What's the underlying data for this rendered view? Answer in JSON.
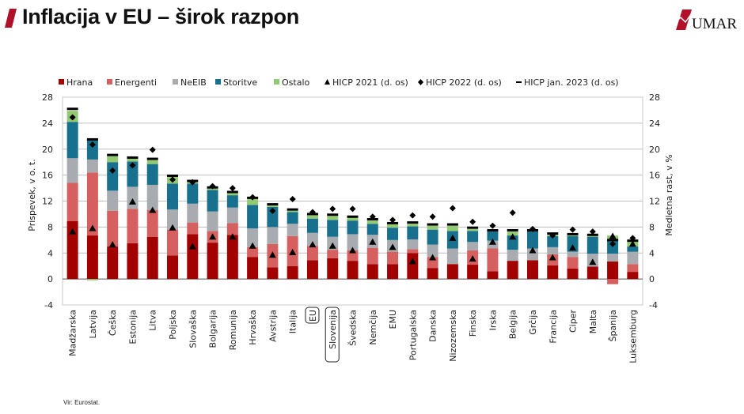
{
  "header": {
    "title": "Inflacija v EU – širok razpon",
    "logo_text": "UMAR"
  },
  "source": "Vir: Eurostat.",
  "colors": {
    "Hrana": "#a30000",
    "Energenti": "#d6605f",
    "NeEIB": "#a8acb0",
    "Storitve": "#17708d",
    "Ostalo": "#94c973",
    "accent": "#b0102a"
  },
  "chart_data": {
    "type": "bar",
    "stacked": true,
    "title": "",
    "ylabel": "Prispevek, v o. t.",
    "y2label": "Medletna rast, v %",
    "ylim": [
      -4,
      28
    ],
    "y2lim": [
      -4,
      28
    ],
    "yticks": [
      "-4",
      "0",
      "4",
      "8",
      "12",
      "16",
      "20",
      "24",
      "28"
    ],
    "grid": true,
    "legend_position": "top",
    "highlighted_categories": [
      "EU",
      "Slovenija"
    ],
    "categories": [
      "Madžarska",
      "Latvija",
      "Češka",
      "Estonija",
      "Litva",
      "Poljska",
      "Slovaška",
      "Bolgarija",
      "Romunija",
      "Hrvaška",
      "Avstrija",
      "Italija",
      "EU",
      "Slovenija",
      "Švedska",
      "Nemčija",
      "EMU",
      "Portugalska",
      "Danska",
      "Nizozemska",
      "Finska",
      "Irska",
      "Belgija",
      "Grčija",
      "Francija",
      "Ciper",
      "Malta",
      "Španija",
      "Luksemburg"
    ],
    "series": [
      {
        "name": "Hrana",
        "kind": "bar",
        "values": [
          8.9,
          6.7,
          5.0,
          5.5,
          6.5,
          3.6,
          6.9,
          5.6,
          6.8,
          3.4,
          1.8,
          2.0,
          2.9,
          3.2,
          2.8,
          2.3,
          2.3,
          4.0,
          1.7,
          2.3,
          2.2,
          1.2,
          2.8,
          2.9,
          2.1,
          1.6,
          1.9,
          2.7,
          1.1
        ]
      },
      {
        "name": "Energenti",
        "kind": "bar",
        "values": [
          5.9,
          9.7,
          5.5,
          5.3,
          4.1,
          4.0,
          1.8,
          1.8,
          1.8,
          1.5,
          3.6,
          4.6,
          2.2,
          1.3,
          1.6,
          2.5,
          1.9,
          0.6,
          1.7,
          0.0,
          2.2,
          3.5,
          0.0,
          0.0,
          1.7,
          1.8,
          0.0,
          -0.8,
          1.2
        ]
      },
      {
        "name": "NeEIB",
        "kind": "bar",
        "values": [
          3.8,
          2.0,
          3.1,
          3.4,
          3.9,
          3.1,
          2.9,
          3.0,
          2.4,
          2.9,
          2.6,
          1.9,
          2.0,
          2.0,
          2.5,
          2.0,
          1.8,
          1.5,
          1.9,
          2.4,
          1.3,
          1.2,
          1.7,
          1.8,
          1.1,
          0.8,
          2.0,
          1.2,
          1.9
        ]
      },
      {
        "name": "Storitve",
        "kind": "bar",
        "values": [
          5.6,
          3.2,
          4.4,
          3.9,
          3.2,
          4.0,
          3.1,
          3.3,
          1.9,
          3.6,
          3.1,
          1.8,
          2.2,
          2.6,
          2.1,
          1.7,
          1.9,
          2.0,
          2.3,
          2.7,
          1.7,
          1.5,
          2.2,
          2.7,
          1.7,
          2.4,
          2.6,
          2.1,
          0.8
        ]
      },
      {
        "name": "Ostalo",
        "kind": "bar",
        "values": [
          1.7,
          -0.2,
          0.9,
          0.5,
          0.6,
          1.0,
          0.2,
          0.2,
          0.4,
          0.9,
          0.3,
          0.2,
          0.5,
          0.6,
          0.5,
          0.5,
          0.5,
          0.4,
          0.6,
          0.8,
          0.3,
          0.1,
          0.6,
          0.1,
          0.2,
          0.2,
          0.2,
          0.7,
          0.8
        ]
      },
      {
        "name": "HICP 2021 (d. os)",
        "kind": "triangle",
        "values": [
          7.3,
          7.8,
          5.3,
          11.9,
          10.6,
          7.9,
          5.0,
          6.5,
          6.5,
          5.1,
          3.7,
          4.1,
          5.3,
          5.1,
          4.4,
          5.7,
          4.9,
          2.7,
          3.3,
          6.3,
          3.1,
          5.7,
          6.5,
          4.4,
          3.3,
          4.8,
          2.6,
          6.6,
          5.4
        ]
      },
      {
        "name": "HICP 2022 (d. os)",
        "kind": "diamond",
        "values": [
          24.9,
          20.7,
          16.7,
          17.5,
          19.9,
          15.3,
          14.9,
          14.3,
          14.0,
          12.6,
          10.5,
          12.3,
          10.3,
          10.8,
          10.8,
          9.6,
          9.1,
          9.8,
          9.6,
          10.9,
          8.8,
          8.2,
          10.2,
          7.7,
          6.7,
          7.6,
          7.3,
          5.4,
          6.3
        ]
      },
      {
        "name": "HICP jan. 2023 (d. os)",
        "kind": "dash",
        "values": [
          26.2,
          21.5,
          19.1,
          18.7,
          18.5,
          15.9,
          15.1,
          14.1,
          13.4,
          12.5,
          11.5,
          10.7,
          10.0,
          9.9,
          9.6,
          9.2,
          8.6,
          8.7,
          8.4,
          8.4,
          7.9,
          7.5,
          7.5,
          7.5,
          7.0,
          6.9,
          6.8,
          6.0,
          5.9
        ]
      }
    ]
  }
}
